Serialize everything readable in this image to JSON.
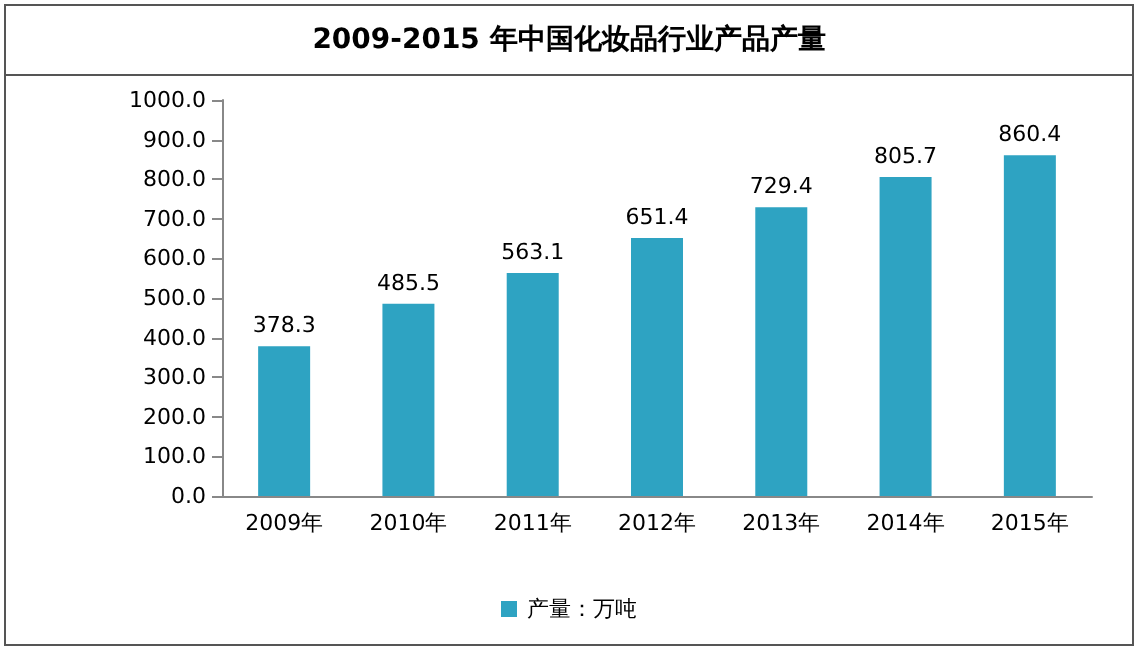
{
  "chart_data": {
    "type": "bar",
    "title": "2009-2015 年中国化妆品行业产品产量",
    "categories": [
      "2009年",
      "2010年",
      "2011年",
      "2012年",
      "2013年",
      "2014年",
      "2015年"
    ],
    "series": [
      {
        "name": "产量：万吨",
        "color": "#2ea3c2",
        "values": [
          378.3,
          485.5,
          563.1,
          651.4,
          729.4,
          805.7,
          860.4
        ]
      }
    ],
    "ylim": [
      0,
      1000
    ],
    "yticks": [
      {
        "value": 0,
        "label": "0.0"
      },
      {
        "value": 100,
        "label": "100.0"
      },
      {
        "value": 200,
        "label": "200.0"
      },
      {
        "value": 300,
        "label": "300.0"
      },
      {
        "value": 400,
        "label": "400.0"
      },
      {
        "value": 500,
        "label": "500.0"
      },
      {
        "value": 600,
        "label": "600.0"
      },
      {
        "value": 700,
        "label": "700.0"
      },
      {
        "value": 800,
        "label": "800.0"
      },
      {
        "value": 900,
        "label": "900.0"
      },
      {
        "value": 1000,
        "label": "1000.0"
      }
    ],
    "data_labels": true,
    "legend": "bottom",
    "grid": false
  }
}
